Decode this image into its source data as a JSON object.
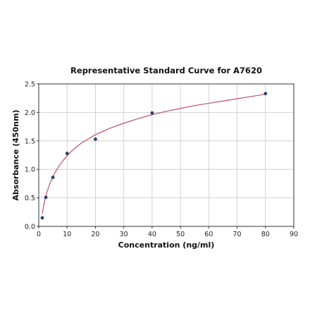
{
  "chart_data": {
    "type": "scatter",
    "title": "Representative Standard Curve for A7620",
    "xlabel": "Concentration (ng/ml)",
    "ylabel": "Absorbance (450nm)",
    "xlim": [
      0,
      90
    ],
    "ylim": [
      0,
      2.5
    ],
    "x_ticks": [
      0,
      10,
      20,
      30,
      40,
      50,
      60,
      70,
      80,
      90
    ],
    "y_ticks": [
      0.0,
      0.5,
      1.0,
      1.5,
      2.0,
      2.5
    ],
    "x_tick_labels": [
      "0",
      "10",
      "20",
      "30",
      "40",
      "50",
      "60",
      "70",
      "80",
      "90"
    ],
    "y_tick_labels": [
      "0.0",
      "0.5",
      "1.0",
      "1.5",
      "2.0",
      "2.5"
    ],
    "grid": true,
    "series": [
      {
        "x": [
          1.25,
          2.5,
          5,
          10,
          20,
          40,
          80
        ],
        "y": [
          0.15,
          0.51,
          0.86,
          1.28,
          1.53,
          1.99,
          2.33
        ],
        "color": "#2e3f6e"
      }
    ],
    "fit_curve": {
      "color": "#c0506a",
      "x": [
        1.25,
        1.5,
        2,
        2.5,
        3,
        4,
        5,
        6,
        8,
        10,
        12,
        15,
        20,
        25,
        30,
        35,
        40,
        45,
        50,
        55,
        60,
        65,
        70,
        75,
        80
      ],
      "y": [
        0.22,
        0.3,
        0.43,
        0.53,
        0.62,
        0.76,
        0.87,
        0.97,
        1.12,
        1.24,
        1.34,
        1.46,
        1.61,
        1.72,
        1.81,
        1.89,
        1.96,
        2.02,
        2.07,
        2.12,
        2.16,
        2.2,
        2.24,
        2.28,
        2.32
      ]
    }
  }
}
